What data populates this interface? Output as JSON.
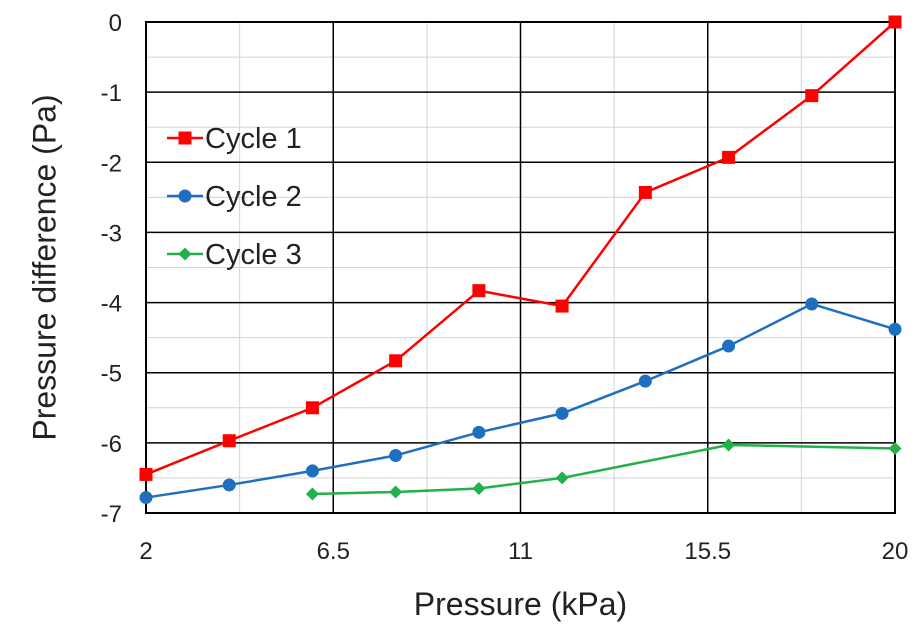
{
  "chart_data": {
    "type": "line",
    "xlabel": "Pressure (kPa)",
    "ylabel": "Pressure difference (Pa)",
    "xlim": [
      2,
      20
    ],
    "ylim": [
      -7,
      0
    ],
    "x_ticks": [
      2,
      6.5,
      11,
      15.5,
      20
    ],
    "x_tick_labels": [
      "2",
      "6.5",
      "11",
      "15.5",
      "20"
    ],
    "y_ticks": [
      0,
      -1,
      -2,
      -3,
      -4,
      -5,
      -6,
      -7
    ],
    "y_tick_labels": [
      "0",
      "-1",
      "-2",
      "-3",
      "-4",
      "-5",
      "-6",
      "-7"
    ],
    "grid": true,
    "legend": "left",
    "series": [
      {
        "name": "Cycle 1",
        "color": "#ff0000",
        "marker": "square",
        "x": [
          2,
          4,
          6,
          8,
          10,
          12,
          14,
          16,
          18,
          20
        ],
        "y": [
          -6.45,
          -5.97,
          -5.5,
          -4.83,
          -3.83,
          -4.05,
          -2.43,
          -1.93,
          -1.05,
          0
        ]
      },
      {
        "name": "Cycle 2",
        "color": "#1f6fc1",
        "marker": "circle",
        "x": [
          2,
          4,
          6,
          8,
          10,
          12,
          14,
          16,
          18,
          20
        ],
        "y": [
          -6.78,
          -6.6,
          -6.4,
          -6.18,
          -5.85,
          -5.58,
          -5.12,
          -4.62,
          -4.02,
          -4.38
        ]
      },
      {
        "name": "Cycle 3",
        "color": "#22b04b",
        "marker": "diamond",
        "x": [
          6,
          8,
          10,
          12,
          16,
          20
        ],
        "y": [
          -6.73,
          -6.7,
          -6.65,
          -6.5,
          -6.03,
          -6.08
        ]
      }
    ]
  }
}
